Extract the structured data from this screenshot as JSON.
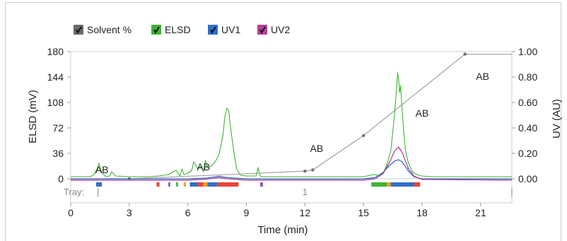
{
  "chart_data": {
    "type": "line",
    "title": "",
    "xlabel": "Time (min)",
    "ylabel_left": "ELSD (mV)",
    "ylabel_right": "UV (AU)",
    "xlim": [
      0,
      22.6
    ],
    "ylim_left": [
      0,
      180
    ],
    "ylim_right": [
      0,
      1.0
    ],
    "x_ticks": [
      "0",
      "3",
      "6",
      "9",
      "12",
      "15",
      "18",
      "21"
    ],
    "x_tick_values": [
      0,
      3,
      6,
      9,
      12,
      15,
      18,
      21
    ],
    "y_left_ticks": [
      "0",
      "36",
      "72",
      "108",
      "144",
      "180"
    ],
    "y_left_values": [
      0,
      36,
      72,
      108,
      144,
      180
    ],
    "y_right_ticks": [
      "0.00",
      "0.20",
      "0.40",
      "0.60",
      "0.80",
      "1.00"
    ],
    "y_right_values": [
      0,
      0.2,
      0.4,
      0.6,
      0.8,
      1.0
    ],
    "legend": [
      {
        "label": "Solvent %",
        "color": "#6b6b6b"
      },
      {
        "label": "ELSD",
        "color": "#3cb531"
      },
      {
        "label": "UV1",
        "color": "#2f6fc7"
      },
      {
        "label": "UV2",
        "color": "#b6409a"
      }
    ],
    "series": [
      {
        "name": "Solvent %",
        "color": "#a8a8a8",
        "axis": "right",
        "x": [
          0,
          3,
          12,
          12.4,
          15,
          20.2,
          22.6
        ],
        "y": [
          0,
          0,
          0.06,
          0.07,
          0.34,
          0.98,
          0.98
        ],
        "markers_x": [
          3,
          12,
          12.4,
          15,
          20.2
        ]
      },
      {
        "name": "ELSD",
        "color": "#3cb531",
        "axis": "left",
        "x": [
          0,
          1.0,
          1.2,
          1.35,
          1.45,
          1.6,
          1.8,
          2.0,
          2.1,
          2.3,
          3.0,
          4.0,
          4.5,
          5.0,
          5.4,
          5.6,
          5.7,
          5.8,
          6.0,
          6.2,
          6.3,
          6.5,
          6.7,
          6.8,
          6.9,
          7.0,
          7.2,
          7.4,
          7.6,
          7.7,
          7.8,
          7.9,
          8.0,
          8.1,
          8.2,
          8.35,
          8.5,
          8.7,
          9.0,
          9.5,
          9.6,
          9.7,
          9.8,
          10.0,
          11.0,
          12.0,
          13.0,
          14.0,
          15.0,
          15.5,
          15.8,
          16.0,
          16.2,
          16.4,
          16.55,
          16.65,
          16.75,
          16.8,
          16.85,
          16.9,
          16.95,
          17.05,
          17.15,
          17.3,
          17.5,
          17.8,
          18.0,
          18.5,
          19.5,
          20.5,
          21.5,
          22.6
        ],
        "y": [
          3,
          3,
          6,
          14,
          22,
          8,
          3,
          4,
          10,
          4,
          3,
          3,
          4,
          6,
          12,
          4,
          14,
          6,
          8,
          12,
          24,
          14,
          18,
          10,
          26,
          16,
          18,
          24,
          34,
          48,
          62,
          88,
          100,
          96,
          70,
          40,
          14,
          5,
          4,
          4,
          16,
          4,
          3,
          3,
          3,
          3,
          3,
          3,
          3,
          6,
          5,
          8,
          20,
          40,
          80,
          112,
          150,
          140,
          122,
          132,
          110,
          70,
          40,
          22,
          10,
          5,
          4,
          3,
          3,
          3,
          3,
          3
        ]
      },
      {
        "name": "UV1",
        "color": "#2f6fc7",
        "axis": "right",
        "x": [
          0,
          6.0,
          7.0,
          7.6,
          8.0,
          9.0,
          15.0,
          15.6,
          16.0,
          16.3,
          16.6,
          16.8,
          17.0,
          17.3,
          17.6,
          18.0,
          22.6
        ],
        "y": [
          0.0,
          0.0,
          0.006,
          0.02,
          0.01,
          0.0,
          0.0,
          0.01,
          0.05,
          0.1,
          0.14,
          0.15,
          0.13,
          0.06,
          0.015,
          0.0,
          0.0
        ]
      },
      {
        "name": "UV2",
        "color": "#b6409a",
        "axis": "right",
        "x": [
          0,
          6.0,
          7.0,
          7.6,
          8.0,
          9.0,
          15.0,
          15.6,
          16.0,
          16.3,
          16.6,
          16.8,
          17.0,
          17.3,
          17.6,
          18.0,
          22.6
        ],
        "y": [
          -0.01,
          -0.01,
          -0.002,
          0.01,
          0.0,
          -0.01,
          -0.01,
          0.0,
          0.04,
          0.12,
          0.22,
          0.25,
          0.2,
          0.08,
          0.02,
          -0.005,
          -0.01
        ]
      }
    ],
    "annotations": [
      {
        "text": "AB",
        "x": 1.6,
        "y_left": 8
      },
      {
        "text": "AB",
        "x": 6.8,
        "y_left": 12
      },
      {
        "text": "AB",
        "x": 12.6,
        "y_left": 38
      },
      {
        "text": "AB",
        "x": 18.0,
        "y_left": 88
      },
      {
        "text": "AB",
        "x": 21.1,
        "y_left": 140
      }
    ],
    "tray": {
      "label": "Tray:",
      "markers": [
        "|",
        "1",
        "|"
      ],
      "marker_x": [
        1.4,
        12.0,
        22.6
      ],
      "fractions": [
        {
          "x0": 1.3,
          "x1": 1.6,
          "color": "#2f6fc7"
        },
        {
          "x0": 4.4,
          "x1": 4.55,
          "color": "#e8433a"
        },
        {
          "x0": 5.0,
          "x1": 5.1,
          "color": "#8d5fb5"
        },
        {
          "x0": 5.4,
          "x1": 5.5,
          "color": "#3cb531"
        },
        {
          "x0": 5.8,
          "x1": 5.9,
          "color": "#f39a1e"
        },
        {
          "x0": 6.1,
          "x1": 6.5,
          "color": "#2f6fc7"
        },
        {
          "x0": 6.5,
          "x1": 6.8,
          "color": "#e8433a"
        },
        {
          "x0": 6.8,
          "x1": 7.0,
          "color": "#f39a1e"
        },
        {
          "x0": 7.0,
          "x1": 7.5,
          "color": "#2f6fc7"
        },
        {
          "x0": 7.5,
          "x1": 8.6,
          "color": "#e8433a"
        },
        {
          "x0": 9.7,
          "x1": 9.85,
          "color": "#8d5fb5"
        },
        {
          "x0": 15.4,
          "x1": 16.2,
          "color": "#3cb531"
        },
        {
          "x0": 16.2,
          "x1": 16.4,
          "color": "#f39a1e"
        },
        {
          "x0": 16.4,
          "x1": 17.6,
          "color": "#2f6fc7"
        },
        {
          "x0": 17.6,
          "x1": 17.9,
          "color": "#e8433a"
        }
      ]
    }
  }
}
